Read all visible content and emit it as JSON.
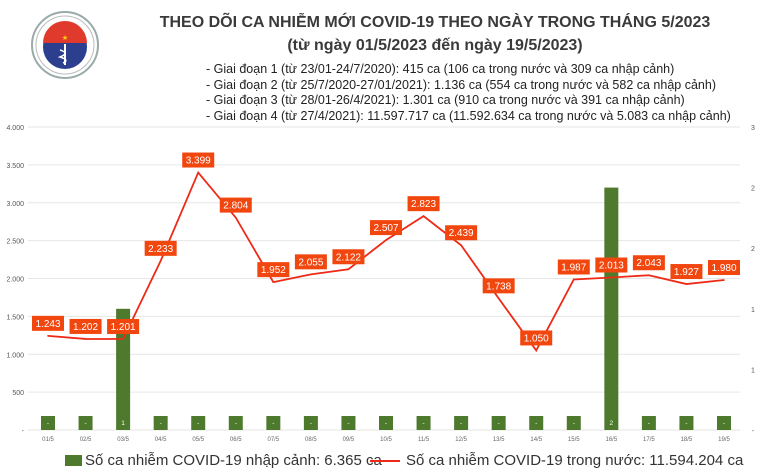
{
  "header": {
    "title_line1": "THEO DÕI CA NHIỄM MỚI COVID-19 THEO NGÀY TRONG THÁNG 5/2023",
    "title_line2": "(từ ngày 01/5/2023 đến ngày 19/5/2023)",
    "notes": [
      "- Giai đoạn 1 (từ 23/01-24/7/2020): 415 ca (106 ca trong nước và 309 ca nhập cảnh)",
      "- Giai đoạn 2 (từ 25/7/2020-27/01/2021): 1.136 ca (554 ca trong nước và 582 ca nhập cảnh)",
      "- Giai đoạn 3 (từ 28/01-26/4/2021): 1.301 ca (910 ca trong nước và 391 ca nhập cảnh)",
      "- Giai đoạn 4 (từ 27/4/2021): 11.597.717 ca (11.592.634 ca trong nước và 5.083 ca nhập cảnh)"
    ]
  },
  "logo": {
    "text_top": "BỘ Y TẾ",
    "text_bottom": "MINISTRY OF HEALTH"
  },
  "chart_data": {
    "type": "bar+line",
    "categories": [
      "01/5",
      "02/5",
      "03/5",
      "04/5",
      "05/5",
      "06/5",
      "07/5",
      "08/5",
      "09/5",
      "10/5",
      "11/5",
      "12/5",
      "13/5",
      "14/5",
      "15/5",
      "16/5",
      "17/5",
      "18/5",
      "19/5"
    ],
    "series": [
      {
        "name": "Số ca nhiễm COVID-19 nhập cảnh: 6.365 ca",
        "type": "bar",
        "axis": "right",
        "color": "#4e7a2e",
        "values": [
          0,
          0,
          1,
          0,
          0,
          0,
          0,
          0,
          0,
          0,
          0,
          0,
          0,
          0,
          0,
          2,
          0,
          0,
          0
        ],
        "labels": [
          "-",
          "-",
          "1",
          "-",
          "-",
          "-",
          "-",
          "-",
          "-",
          "-",
          "-",
          "-",
          "-",
          "-",
          "-",
          "2",
          "-",
          "-",
          "-"
        ]
      },
      {
        "name": "Số ca nhiễm COVID-19 trong nước: 11.594.204 ca",
        "type": "line",
        "axis": "left",
        "color": "#ee2a16",
        "values": [
          1243,
          1202,
          1201,
          2233,
          3399,
          2804,
          1952,
          2055,
          2122,
          2507,
          2823,
          2439,
          1738,
          1050,
          1987,
          2013,
          2043,
          1927,
          1980
        ],
        "labels": [
          "1.243",
          "1.202",
          "1.201",
          "2.233",
          "3.399",
          "2.804",
          "1.952",
          "2.055",
          "2.122",
          "2.507",
          "2.823",
          "2.439",
          "1.738",
          "1.050",
          "1.987",
          "2.013",
          "2.043",
          "1.927",
          "1.980"
        ]
      }
    ],
    "left_axis": {
      "ylim": [
        0,
        4000
      ],
      "ticks": [
        "-",
        "500",
        "1.000",
        "1.500",
        "2.000",
        "2.500",
        "3.000",
        "3.500",
        "4.000"
      ]
    },
    "right_axis": {
      "ylim": [
        0,
        2.5
      ],
      "ticks": [
        "-",
        "1",
        "1",
        "2",
        "2",
        "3"
      ]
    },
    "grid": true,
    "legend": "bottom"
  }
}
